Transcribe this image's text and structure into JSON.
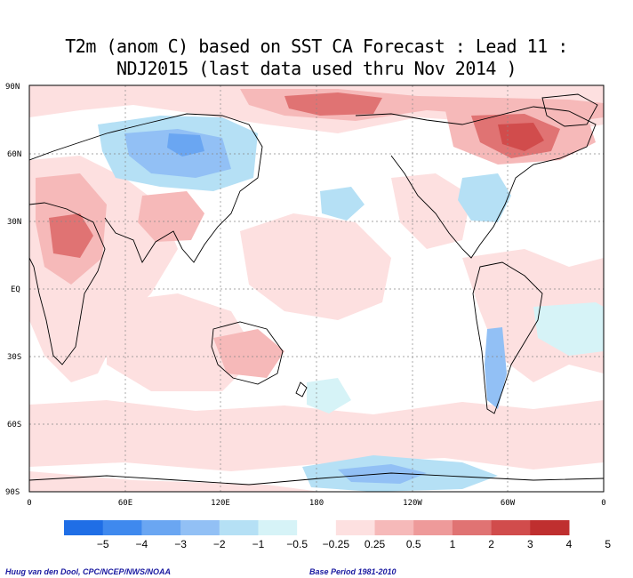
{
  "title": {
    "line1": "T2m (anom C) based on SST CA Forecast : Lead 11 :",
    "line2": "NDJ2015 (last data used thru Nov 2014 )"
  },
  "lat_labels": [
    "90N",
    "60N",
    "30N",
    "EQ",
    "30S",
    "60S",
    "90S"
  ],
  "lon_labels": [
    "0",
    "60E",
    "120E",
    "180",
    "120W",
    "60W",
    "0"
  ],
  "colorbar": {
    "ticks": [
      "−5",
      "−4",
      "−3",
      "−2",
      "−1",
      "−0.5",
      "−0.25",
      "0.25",
      "0.5",
      "1",
      "2",
      "3",
      "4",
      "5"
    ],
    "colors": [
      "#1f6ee6",
      "#3f89ee",
      "#6aa6f2",
      "#92c0f5",
      "#b5e0f5",
      "#d6f3f7",
      "#ffffff",
      "#fde0e0",
      "#f6b9b9",
      "#ee9a9a",
      "#e07373",
      "#d14c4c",
      "#bf2f2f"
    ]
  },
  "credit_left": "Huug van den Dool, CPC/NCEP/NWS/NOAA",
  "credit_right": "Base Period 1981-2010"
}
